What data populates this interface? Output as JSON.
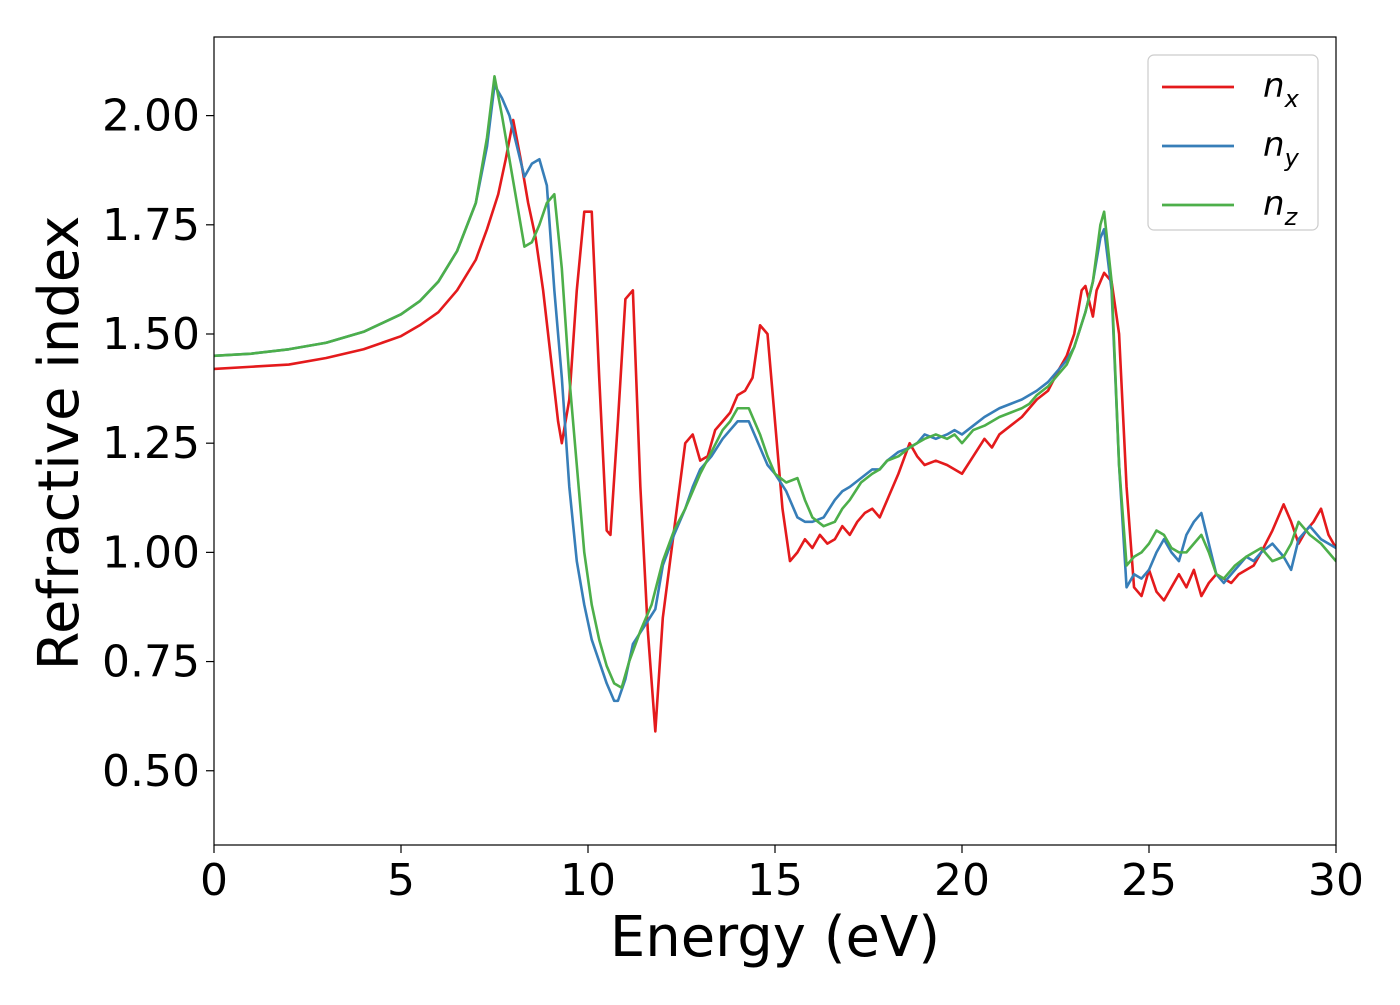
{
  "chart_data": {
    "type": "line",
    "title": "",
    "xlabel": "Energy (eV)",
    "ylabel": "Refractive index",
    "xlim": [
      0,
      30
    ],
    "ylim": [
      0.33,
      2.18
    ],
    "xticks": [
      0,
      5,
      10,
      15,
      20,
      25,
      30
    ],
    "xtick_labels": [
      "0",
      "5",
      "10",
      "15",
      "20",
      "25",
      "30"
    ],
    "yticks": [
      0.5,
      0.75,
      1.0,
      1.25,
      1.5,
      1.75,
      2.0
    ],
    "ytick_labels": [
      "0.50",
      "0.75",
      "1.00",
      "1.25",
      "1.50",
      "1.75",
      "2.00"
    ],
    "grid": false,
    "legend_position": "top-right",
    "series": [
      {
        "name": "n_x",
        "label_base": "n",
        "label_sub": "x",
        "color": "#e41a1c",
        "x": [
          0,
          1,
          2,
          3,
          4,
          5,
          5.5,
          6,
          6.5,
          7,
          7.3,
          7.6,
          7.8,
          8.0,
          8.2,
          8.4,
          8.6,
          8.8,
          9.0,
          9.2,
          9.3,
          9.5,
          9.7,
          9.9,
          10.1,
          10.3,
          10.5,
          10.6,
          10.8,
          11.0,
          11.2,
          11.4,
          11.6,
          11.8,
          12.0,
          12.3,
          12.6,
          12.8,
          13.0,
          13.2,
          13.4,
          13.6,
          13.8,
          14.0,
          14.2,
          14.4,
          14.6,
          14.8,
          15.0,
          15.2,
          15.4,
          15.6,
          15.8,
          16.0,
          16.2,
          16.4,
          16.6,
          16.8,
          17.0,
          17.2,
          17.4,
          17.6,
          17.8,
          18.0,
          18.3,
          18.6,
          18.8,
          19.0,
          19.3,
          19.6,
          19.8,
          20.0,
          20.3,
          20.6,
          20.8,
          21.0,
          21.3,
          21.6,
          21.8,
          22.0,
          22.3,
          22.6,
          22.8,
          23.0,
          23.2,
          23.3,
          23.5,
          23.6,
          23.8,
          24.0,
          24.2,
          24.4,
          24.6,
          24.8,
          25.0,
          25.2,
          25.4,
          25.6,
          25.8,
          26.0,
          26.2,
          26.4,
          26.6,
          26.8,
          27.0,
          27.2,
          27.4,
          27.6,
          27.8,
          28.0,
          28.3,
          28.6,
          28.8,
          29.0,
          29.2,
          29.4,
          29.6,
          29.8,
          30.0
        ],
        "y": [
          1.42,
          1.425,
          1.43,
          1.445,
          1.465,
          1.495,
          1.52,
          1.55,
          1.6,
          1.67,
          1.74,
          1.82,
          1.9,
          1.99,
          1.9,
          1.8,
          1.72,
          1.6,
          1.45,
          1.3,
          1.25,
          1.35,
          1.6,
          1.78,
          1.78,
          1.4,
          1.05,
          1.04,
          1.3,
          1.58,
          1.6,
          1.15,
          0.82,
          0.59,
          0.85,
          1.05,
          1.25,
          1.27,
          1.21,
          1.22,
          1.28,
          1.3,
          1.32,
          1.36,
          1.37,
          1.4,
          1.52,
          1.5,
          1.3,
          1.1,
          0.98,
          1.0,
          1.03,
          1.01,
          1.04,
          1.02,
          1.03,
          1.06,
          1.04,
          1.07,
          1.09,
          1.1,
          1.08,
          1.12,
          1.18,
          1.25,
          1.22,
          1.2,
          1.21,
          1.2,
          1.19,
          1.18,
          1.22,
          1.26,
          1.24,
          1.27,
          1.29,
          1.31,
          1.33,
          1.35,
          1.37,
          1.42,
          1.45,
          1.5,
          1.6,
          1.61,
          1.54,
          1.6,
          1.64,
          1.62,
          1.5,
          1.15,
          0.92,
          0.9,
          0.96,
          0.91,
          0.89,
          0.92,
          0.95,
          0.92,
          0.96,
          0.9,
          0.93,
          0.95,
          0.94,
          0.93,
          0.95,
          0.96,
          0.97,
          1.0,
          1.05,
          1.11,
          1.07,
          1.02,
          1.05,
          1.07,
          1.1,
          1.04,
          1.01
        ]
      },
      {
        "name": "n_y",
        "label_base": "n",
        "label_sub": "y",
        "color": "#377eb8",
        "x": [
          0,
          1,
          2,
          3,
          4,
          5,
          5.5,
          6,
          6.5,
          7,
          7.3,
          7.5,
          7.7,
          7.9,
          8.1,
          8.3,
          8.5,
          8.7,
          8.9,
          9.1,
          9.3,
          9.5,
          9.7,
          9.9,
          10.1,
          10.3,
          10.5,
          10.7,
          10.8,
          11.0,
          11.2,
          11.5,
          11.8,
          12.0,
          12.3,
          12.6,
          12.8,
          13.0,
          13.3,
          13.6,
          13.8,
          14.0,
          14.3,
          14.6,
          14.8,
          15.0,
          15.3,
          15.6,
          15.8,
          16.0,
          16.3,
          16.6,
          16.8,
          17.0,
          17.3,
          17.6,
          17.8,
          18.0,
          18.3,
          18.6,
          18.8,
          19.0,
          19.3,
          19.6,
          19.8,
          20.0,
          20.3,
          20.6,
          20.8,
          21.0,
          21.3,
          21.6,
          21.8,
          22.0,
          22.3,
          22.6,
          22.8,
          23.0,
          23.3,
          23.5,
          23.7,
          23.8,
          24.0,
          24.2,
          24.4,
          24.6,
          24.8,
          25.0,
          25.2,
          25.4,
          25.6,
          25.8,
          26.0,
          26.2,
          26.4,
          26.6,
          26.8,
          27.0,
          27.2,
          27.4,
          27.6,
          27.8,
          28.0,
          28.3,
          28.6,
          28.8,
          29.0,
          29.3,
          29.6,
          29.8,
          30.0
        ],
        "y": [
          1.45,
          1.455,
          1.465,
          1.48,
          1.505,
          1.545,
          1.575,
          1.62,
          1.69,
          1.8,
          1.93,
          2.07,
          2.04,
          2.0,
          1.93,
          1.86,
          1.89,
          1.9,
          1.84,
          1.6,
          1.4,
          1.15,
          0.98,
          0.88,
          0.8,
          0.75,
          0.7,
          0.66,
          0.66,
          0.71,
          0.79,
          0.83,
          0.87,
          0.97,
          1.04,
          1.1,
          1.15,
          1.19,
          1.22,
          1.26,
          1.28,
          1.3,
          1.3,
          1.24,
          1.2,
          1.18,
          1.14,
          1.08,
          1.07,
          1.07,
          1.08,
          1.12,
          1.14,
          1.15,
          1.17,
          1.19,
          1.19,
          1.21,
          1.23,
          1.24,
          1.25,
          1.27,
          1.26,
          1.27,
          1.28,
          1.27,
          1.29,
          1.31,
          1.32,
          1.33,
          1.34,
          1.35,
          1.36,
          1.37,
          1.39,
          1.42,
          1.44,
          1.47,
          1.55,
          1.62,
          1.72,
          1.74,
          1.6,
          1.2,
          0.92,
          0.95,
          0.94,
          0.96,
          1.0,
          1.03,
          1.0,
          0.98,
          1.04,
          1.07,
          1.09,
          1.02,
          0.95,
          0.93,
          0.95,
          0.97,
          0.99,
          0.98,
          1.0,
          1.02,
          0.99,
          0.96,
          1.03,
          1.06,
          1.03,
          1.02,
          1.01
        ]
      },
      {
        "name": "n_z",
        "label_base": "n",
        "label_sub": "z",
        "color": "#4daf4a",
        "x": [
          0,
          1,
          2,
          3,
          4,
          5,
          5.5,
          6,
          6.5,
          7,
          7.3,
          7.5,
          7.7,
          7.9,
          8.1,
          8.3,
          8.5,
          8.7,
          8.9,
          9.1,
          9.3,
          9.5,
          9.7,
          9.9,
          10.1,
          10.3,
          10.5,
          10.7,
          10.9,
          11.1,
          11.4,
          11.7,
          12.0,
          12.3,
          12.6,
          12.8,
          13.0,
          13.3,
          13.6,
          13.8,
          14.0,
          14.3,
          14.6,
          14.8,
          15.0,
          15.3,
          15.6,
          15.8,
          16.0,
          16.3,
          16.6,
          16.8,
          17.0,
          17.3,
          17.6,
          17.8,
          18.0,
          18.3,
          18.6,
          18.8,
          19.0,
          19.3,
          19.6,
          19.8,
          20.0,
          20.3,
          20.6,
          20.8,
          21.0,
          21.3,
          21.6,
          21.8,
          22.0,
          22.3,
          22.6,
          22.8,
          23.0,
          23.3,
          23.5,
          23.7,
          23.8,
          24.0,
          24.2,
          24.4,
          24.6,
          24.8,
          25.0,
          25.2,
          25.4,
          25.6,
          25.8,
          26.0,
          26.2,
          26.4,
          26.6,
          26.8,
          27.0,
          27.3,
          27.6,
          27.8,
          28.0,
          28.3,
          28.6,
          28.8,
          29.0,
          29.3,
          29.6,
          29.8,
          30.0
        ],
        "y": [
          1.45,
          1.455,
          1.465,
          1.48,
          1.505,
          1.545,
          1.575,
          1.62,
          1.69,
          1.8,
          1.95,
          2.09,
          2.0,
          1.9,
          1.8,
          1.7,
          1.71,
          1.75,
          1.8,
          1.82,
          1.65,
          1.4,
          1.2,
          1.0,
          0.88,
          0.8,
          0.74,
          0.7,
          0.69,
          0.75,
          0.82,
          0.88,
          0.98,
          1.05,
          1.1,
          1.14,
          1.18,
          1.23,
          1.28,
          1.3,
          1.33,
          1.33,
          1.27,
          1.22,
          1.18,
          1.16,
          1.17,
          1.12,
          1.08,
          1.06,
          1.07,
          1.1,
          1.12,
          1.16,
          1.18,
          1.19,
          1.21,
          1.22,
          1.24,
          1.25,
          1.26,
          1.27,
          1.26,
          1.27,
          1.25,
          1.28,
          1.29,
          1.3,
          1.31,
          1.32,
          1.33,
          1.34,
          1.36,
          1.38,
          1.41,
          1.43,
          1.47,
          1.55,
          1.62,
          1.75,
          1.78,
          1.62,
          1.2,
          0.97,
          0.99,
          1.0,
          1.02,
          1.05,
          1.04,
          1.01,
          1.0,
          1.0,
          1.02,
          1.04,
          1.0,
          0.95,
          0.94,
          0.97,
          0.99,
          1.0,
          1.01,
          0.98,
          0.99,
          1.02,
          1.07,
          1.04,
          1.02,
          1.0,
          0.98
        ]
      }
    ]
  }
}
